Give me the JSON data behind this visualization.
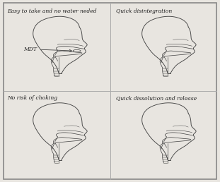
{
  "figure_bg": "#e8e5e0",
  "panel_bg": "#ede9e3",
  "border_color": "#888888",
  "divider_color": "#aaaaaa",
  "panels": [
    {
      "title": "Easy to take and no water neded",
      "annotation": "MDT"
    },
    {
      "title": "Quick disintegration",
      "annotation": ""
    },
    {
      "title": "No risk of choking",
      "annotation": ""
    },
    {
      "title": "Quick dissolution and release",
      "annotation": ""
    }
  ],
  "title_fontsize": 5.5,
  "annot_fontsize": 5.5,
  "line_color": "#444444",
  "line_width": 0.65
}
